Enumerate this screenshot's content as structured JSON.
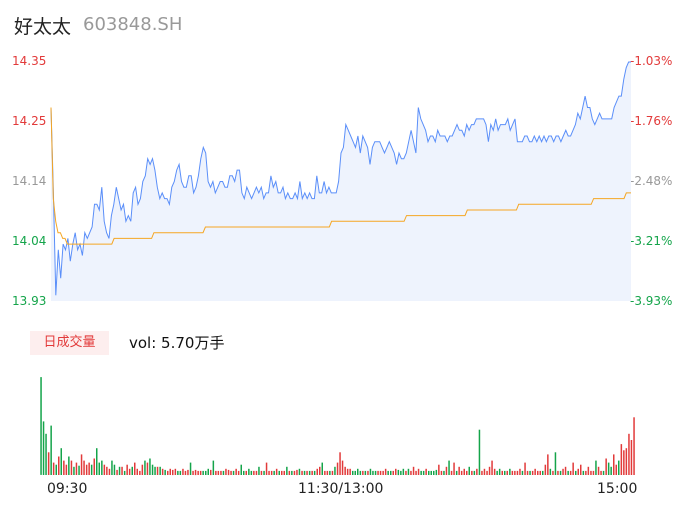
{
  "header": {
    "name": "好太太",
    "code": "603848.SH"
  },
  "volume": {
    "badge": "日成交量",
    "text": "vol: 5.70万手"
  },
  "colors": {
    "up": "#e23a3a",
    "down": "#14a44a",
    "neutral": "#999999",
    "price_line": "#5b8ff9",
    "avg_line": "#f5a623"
  },
  "chart_data": [
    {
      "type": "line",
      "title": "",
      "y_left_ticks": [
        "14.35",
        "14.25",
        "14.14",
        "14.04",
        "13.93"
      ],
      "y_right_ticks": [
        "-1.03%",
        "-1.76%",
        "-2.48%",
        "-3.21%",
        "-3.93%"
      ],
      "ylim": [
        13.93,
        14.35
      ],
      "x_ticks": [
        "09:30",
        "11:30/13:00",
        "15:00"
      ],
      "series": [
        {
          "name": "price",
          "values": [
            14.27,
            14.12,
            13.94,
            14.02,
            13.97,
            14.03,
            14.02,
            14.04,
            14.0,
            14.03,
            14.05,
            14.02,
            14.03,
            14.01,
            14.05,
            14.04,
            14.05,
            14.06,
            14.1,
            14.1,
            14.09,
            14.13,
            14.07,
            14.05,
            14.04,
            14.08,
            14.1,
            14.13,
            14.11,
            14.09,
            14.1,
            14.07,
            14.08,
            14.07,
            14.12,
            14.13,
            14.1,
            14.11,
            14.14,
            14.15,
            14.18,
            14.17,
            14.18,
            14.16,
            14.13,
            14.11,
            14.12,
            14.11,
            14.11,
            14.1,
            14.13,
            14.14,
            14.16,
            14.17,
            14.14,
            14.13,
            14.13,
            14.15,
            14.15,
            14.12,
            14.13,
            14.15,
            14.18,
            14.2,
            14.19,
            14.14,
            14.13,
            14.14,
            14.12,
            14.13,
            14.14,
            14.14,
            14.13,
            14.13,
            14.15,
            14.15,
            14.14,
            14.16,
            14.16,
            14.12,
            14.11,
            14.13,
            14.12,
            14.11,
            14.12,
            14.13,
            14.12,
            14.13,
            14.11,
            14.12,
            14.12,
            14.15,
            14.13,
            14.14,
            14.12,
            14.12,
            14.13,
            14.11,
            14.12,
            14.11,
            14.11,
            14.12,
            14.11,
            14.14,
            14.11,
            14.12,
            14.11,
            14.12,
            14.11,
            14.11,
            14.15,
            14.12,
            14.12,
            14.14,
            14.12,
            14.13,
            14.12,
            14.12,
            14.12,
            14.14,
            14.19,
            14.2,
            14.24,
            14.23,
            14.22,
            14.21,
            14.2,
            14.22,
            14.19,
            14.22,
            14.21,
            14.2,
            14.17,
            14.2,
            14.21,
            14.21,
            14.21,
            14.2,
            14.19,
            14.2,
            14.21,
            14.2,
            14.19,
            14.17,
            14.19,
            14.18,
            14.18,
            14.19,
            14.21,
            14.23,
            14.21,
            14.19,
            14.27,
            14.25,
            14.24,
            14.23,
            14.21,
            14.22,
            14.22,
            14.21,
            14.23,
            14.22,
            14.22,
            14.22,
            14.21,
            14.22,
            14.22,
            14.23,
            14.24,
            14.23,
            14.23,
            14.22,
            14.24,
            14.23,
            14.24,
            14.24,
            14.25,
            14.25,
            14.25,
            14.25,
            14.24,
            14.21,
            14.24,
            14.23,
            14.25,
            14.23,
            14.24,
            14.24,
            14.24,
            14.25,
            14.23,
            14.24,
            14.25,
            14.21,
            14.21,
            14.21,
            14.22,
            14.22,
            14.21,
            14.21,
            14.22,
            14.21,
            14.22,
            14.21,
            14.22,
            14.21,
            14.22,
            14.22,
            14.21,
            14.22,
            14.22,
            14.21,
            14.22,
            14.23,
            14.22,
            14.22,
            14.23,
            14.24,
            14.26,
            14.25,
            14.27,
            14.29,
            14.27,
            14.27,
            14.25,
            14.24,
            14.25,
            14.26,
            14.25,
            14.25,
            14.25,
            14.25,
            14.25,
            14.27,
            14.28,
            14.29,
            14.29,
            14.32,
            14.34,
            14.35,
            14.35
          ]
        },
        {
          "name": "avg",
          "values": [
            14.27,
            14.11,
            14.07,
            14.05,
            14.05,
            14.04,
            14.04,
            14.03,
            14.03,
            14.03,
            14.03,
            14.03,
            14.03,
            14.03,
            14.03,
            14.03,
            14.03,
            14.03,
            14.03,
            14.03,
            14.03,
            14.03,
            14.03,
            14.03,
            14.03,
            14.03,
            14.03,
            14.04,
            14.04,
            14.04,
            14.04,
            14.04,
            14.04,
            14.04,
            14.04,
            14.04,
            14.04,
            14.04,
            14.04,
            14.04,
            14.04,
            14.04,
            14.04,
            14.04,
            14.05,
            14.05,
            14.05,
            14.05,
            14.05,
            14.05,
            14.05,
            14.05,
            14.05,
            14.05,
            14.05,
            14.05,
            14.05,
            14.05,
            14.05,
            14.05,
            14.05,
            14.05,
            14.05,
            14.05,
            14.05,
            14.05,
            14.06,
            14.06,
            14.06,
            14.06,
            14.06,
            14.06,
            14.06,
            14.06,
            14.06,
            14.06,
            14.06,
            14.06,
            14.06,
            14.06,
            14.06,
            14.06,
            14.06,
            14.06,
            14.06,
            14.06,
            14.06,
            14.06,
            14.06,
            14.06,
            14.06,
            14.06,
            14.06,
            14.06,
            14.06,
            14.06,
            14.06,
            14.06,
            14.06,
            14.06,
            14.06,
            14.06,
            14.06,
            14.06,
            14.06,
            14.06,
            14.06,
            14.06,
            14.06,
            14.06,
            14.06,
            14.06,
            14.06,
            14.06,
            14.06,
            14.06,
            14.06,
            14.06,
            14.06,
            14.06,
            14.07,
            14.07,
            14.07,
            14.07,
            14.07,
            14.07,
            14.07,
            14.07,
            14.07,
            14.07,
            14.07,
            14.07,
            14.07,
            14.07,
            14.07,
            14.07,
            14.07,
            14.07,
            14.07,
            14.07,
            14.07,
            14.07,
            14.07,
            14.07,
            14.07,
            14.07,
            14.07,
            14.07,
            14.07,
            14.07,
            14.07,
            14.07,
            14.08,
            14.08,
            14.08,
            14.08,
            14.08,
            14.08,
            14.08,
            14.08,
            14.08,
            14.08,
            14.08,
            14.08,
            14.08,
            14.08,
            14.08,
            14.08,
            14.08,
            14.08,
            14.08,
            14.08,
            14.08,
            14.08,
            14.08,
            14.08,
            14.08,
            14.08,
            14.09,
            14.09,
            14.09,
            14.09,
            14.09,
            14.09,
            14.09,
            14.09,
            14.09,
            14.09,
            14.09,
            14.09,
            14.09,
            14.09,
            14.09,
            14.09,
            14.09,
            14.09,
            14.09,
            14.09,
            14.09,
            14.09,
            14.1,
            14.1,
            14.1,
            14.1,
            14.1,
            14.1,
            14.1,
            14.1,
            14.1,
            14.1,
            14.1,
            14.1,
            14.1,
            14.1,
            14.1,
            14.1,
            14.1,
            14.1,
            14.1,
            14.1,
            14.1,
            14.1,
            14.1,
            14.1,
            14.1,
            14.1,
            14.1,
            14.1,
            14.1,
            14.1,
            14.1,
            14.1,
            14.11,
            14.11,
            14.11,
            14.11,
            14.11,
            14.11,
            14.11,
            14.11,
            14.11,
            14.11,
            14.11,
            14.11,
            14.11,
            14.11,
            14.12,
            14.12,
            14.12
          ]
        }
      ]
    },
    {
      "type": "bar",
      "title": "",
      "ylim": [
        0,
        100
      ],
      "series": [
        {
          "name": "volume",
          "values": [
            95,
            52,
            40,
            22,
            48,
            12,
            10,
            18,
            26,
            14,
            10,
            18,
            14,
            8,
            12,
            9,
            20,
            14,
            10,
            12,
            10,
            16,
            26,
            12,
            14,
            10,
            8,
            6,
            14,
            10,
            5,
            8,
            8,
            4,
            10,
            6,
            8,
            12,
            6,
            4,
            10,
            14,
            12,
            16,
            10,
            8,
            8,
            8,
            6,
            5,
            4,
            6,
            5,
            6,
            4,
            4,
            6,
            4,
            5,
            12,
            4,
            5,
            4,
            4,
            4,
            4,
            6,
            5,
            14,
            4,
            4,
            4,
            4,
            6,
            5,
            4,
            4,
            6,
            4,
            10,
            4,
            4,
            6,
            4,
            4,
            4,
            8,
            4,
            4,
            12,
            4,
            4,
            4,
            6,
            4,
            4,
            4,
            8,
            4,
            4,
            4,
            5,
            6,
            4,
            4,
            4,
            4,
            4,
            4,
            6,
            8,
            12,
            4,
            4,
            4,
            4,
            8,
            12,
            22,
            14,
            8,
            6,
            6,
            4,
            4,
            6,
            4,
            4,
            4,
            4,
            6,
            4,
            4,
            4,
            4,
            4,
            6,
            4,
            4,
            4,
            6,
            5,
            4,
            6,
            4,
            6,
            4,
            8,
            4,
            6,
            4,
            4,
            6,
            4,
            4,
            4,
            5,
            10,
            4,
            4,
            8,
            14,
            4,
            12,
            4,
            8,
            4,
            6,
            4,
            8,
            4,
            4,
            6,
            44,
            4,
            6,
            4,
            8,
            14,
            6,
            4,
            6,
            4,
            4,
            4,
            6,
            4,
            4,
            4,
            6,
            4,
            12,
            4,
            4,
            4,
            6,
            4,
            4,
            4,
            10,
            20,
            6,
            4,
            22,
            4,
            4,
            6,
            8,
            4,
            4,
            12,
            4,
            6,
            10,
            4,
            4,
            8,
            4,
            4,
            14,
            8,
            4,
            4,
            16,
            12,
            8,
            20,
            10,
            14,
            30,
            24,
            26,
            40,
            34,
            56
          ]
        }
      ]
    }
  ]
}
